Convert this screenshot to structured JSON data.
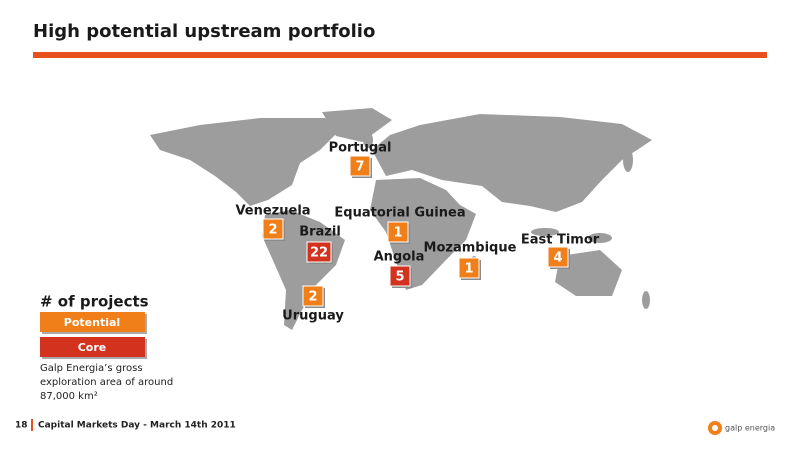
{
  "header": {
    "title": "High potential upstream portfolio"
  },
  "projects": [
    {
      "country": "Portugal",
      "count": 7,
      "color": "#f07f1a"
    },
    {
      "country": "Venezuela",
      "count": 2,
      "color": "#f07f1a"
    },
    {
      "country": "Brazil",
      "count": 22,
      "color": "#d2321e"
    },
    {
      "country": "Equatorial Guinea",
      "count": 1,
      "color": "#f07f1a"
    },
    {
      "country": "Angola",
      "count": 5,
      "color": "#d2321e"
    },
    {
      "country": "Mozambique",
      "count": 1,
      "color": "#f07f1a"
    },
    {
      "country": "East Timor",
      "count": 4,
      "color": "#f07f1a"
    },
    {
      "country": "Uruguay",
      "count": 2,
      "color": "#f07f1a"
    }
  ],
  "legend": {
    "title": "# of projects",
    "items": [
      {
        "label": "Potential",
        "color": "#f07f1a"
      },
      {
        "label": "Core",
        "color": "#d2321e"
      }
    ]
  },
  "note": {
    "lines": [
      "Galp Energia’s gross",
      "exploration area of around",
      "87,000 km²"
    ]
  },
  "footer": {
    "page": "18",
    "text": "Capital Markets Day - March 14th 2011"
  },
  "logo": {
    "text": "galp energia"
  }
}
